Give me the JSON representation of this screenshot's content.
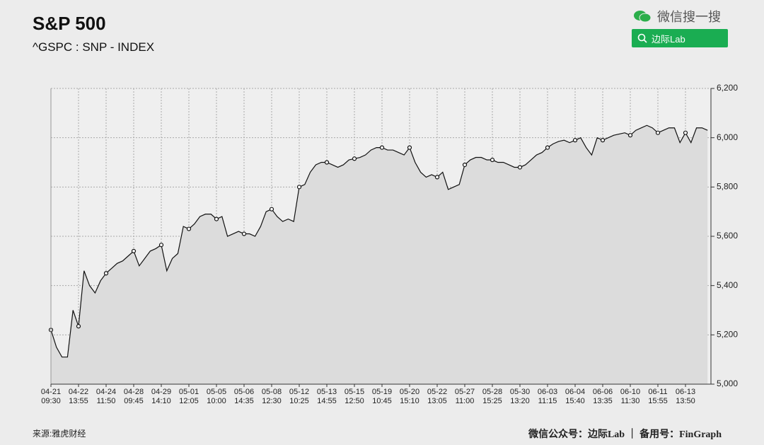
{
  "header": {
    "title": "S&P 500",
    "subtitle": "^GSPC : SNP - INDEX",
    "search_label": "微信搜一搜",
    "search_button": "边际Lab"
  },
  "footer": {
    "source": "来源:雅虎财经",
    "credit": "微信公众号：边际Lab ｜ 备用号：FinGraph"
  },
  "chart_data": {
    "type": "line",
    "color": "#111111",
    "fill": "#dcdcdc",
    "grid": true,
    "categories": [
      "04-21\n09:30",
      null,
      null,
      null,
      null,
      "04-22\n13:55",
      null,
      null,
      null,
      null,
      "04-24\n11:50",
      null,
      null,
      null,
      null,
      "04-28\n09:45",
      null,
      null,
      null,
      null,
      "04-29\n14:10",
      null,
      null,
      null,
      null,
      "05-01\n12:05",
      null,
      null,
      null,
      null,
      "05-05\n10:00",
      null,
      null,
      null,
      null,
      "05-06\n14:35",
      null,
      null,
      null,
      null,
      "05-08\n12:30",
      null,
      null,
      null,
      null,
      "05-12\n10:25",
      null,
      null,
      null,
      null,
      "05-13\n14:55",
      null,
      null,
      null,
      null,
      "05-15\n12:50",
      null,
      null,
      null,
      null,
      "05-19\n10:45",
      null,
      null,
      null,
      null,
      "05-20\n15:10",
      null,
      null,
      null,
      null,
      "05-22\n13:05",
      null,
      null,
      null,
      null,
      "05-27\n11:00",
      null,
      null,
      null,
      null,
      "05-28\n15:25",
      null,
      null,
      null,
      null,
      "05-30\n13:20",
      null,
      null,
      null,
      null,
      "06-03\n11:15",
      null,
      null,
      null,
      null,
      "06-04\n15:40",
      null,
      null,
      null,
      null,
      "06-06\n13:35",
      null,
      null,
      null,
      null,
      "06-10\n11:30",
      null,
      null,
      null,
      null,
      "06-11\n15:55",
      null,
      null,
      null,
      null,
      "06-13\n13:50",
      null,
      null,
      null,
      null
    ],
    "values": [
      5220,
      5150,
      5110,
      5110,
      5300,
      5235,
      5460,
      5400,
      5370,
      5420,
      5450,
      5470,
      5490,
      5500,
      5520,
      5540,
      5480,
      5510,
      5540,
      5550,
      5565,
      5460,
      5510,
      5530,
      5640,
      5630,
      5650,
      5680,
      5690,
      5690,
      5670,
      5680,
      5600,
      5610,
      5620,
      5610,
      5610,
      5600,
      5640,
      5700,
      5710,
      5680,
      5660,
      5670,
      5660,
      5800,
      5810,
      5860,
      5890,
      5900,
      5900,
      5890,
      5880,
      5890,
      5910,
      5915,
      5920,
      5930,
      5950,
      5960,
      5960,
      5950,
      5950,
      5940,
      5930,
      5960,
      5900,
      5860,
      5840,
      5850,
      5840,
      5860,
      5790,
      5800,
      5810,
      5890,
      5910,
      5920,
      5920,
      5910,
      5910,
      5900,
      5900,
      5890,
      5880,
      5880,
      5890,
      5910,
      5930,
      5940,
      5960,
      5975,
      5985,
      5990,
      5980,
      5990,
      6000,
      5960,
      5930,
      6000,
      5990,
      6000,
      6010,
      6015,
      6020,
      6010,
      6030,
      6040,
      6050,
      6040,
      6020,
      6030,
      6040,
      6040,
      5980,
      6020,
      5980,
      6040,
      6040,
      6030
    ],
    "ylim": [
      5000,
      6200
    ],
    "yticks": [
      {
        "value": 5000,
        "label": "5,000"
      },
      {
        "value": 5200,
        "label": "5,200"
      },
      {
        "value": 5400,
        "label": "5,400"
      },
      {
        "value": 5600,
        "label": "5,600"
      },
      {
        "value": 5800,
        "label": "5,800"
      },
      {
        "value": 6000,
        "label": "6,000"
      },
      {
        "value": 6200,
        "label": "6,200"
      }
    ]
  }
}
